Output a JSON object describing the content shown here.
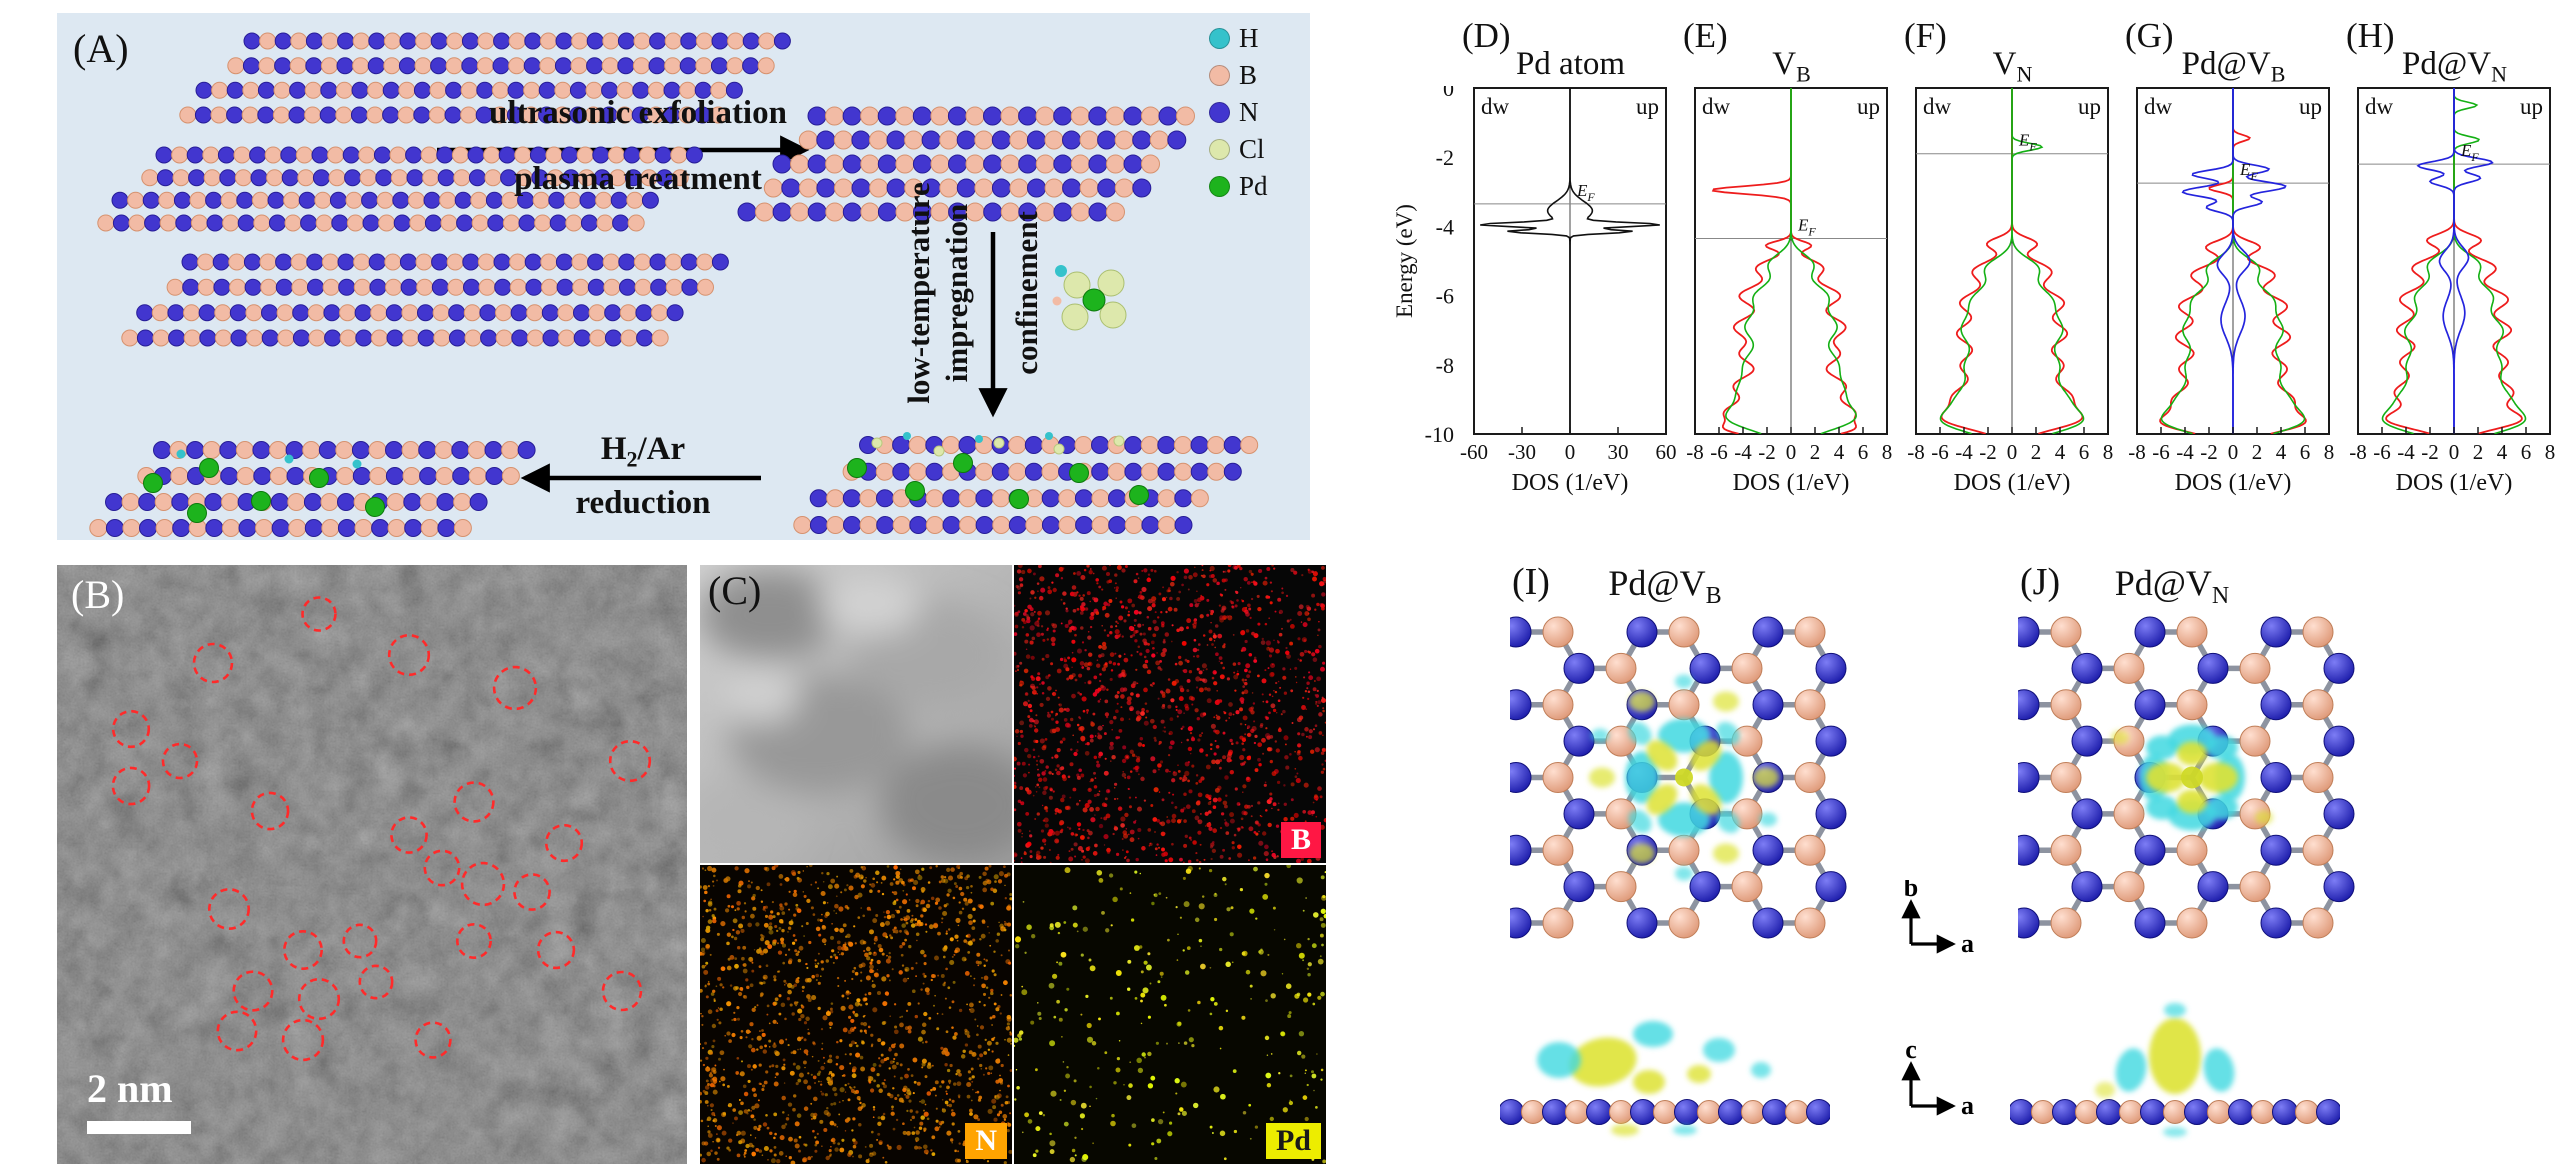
{
  "panelA": {
    "letter": "(A)",
    "arrow_right_line1": "ultrasonic exfoliation",
    "arrow_right_line2": "plasma treatment",
    "vert_label_1": "low-temperature",
    "vert_label_2": "impregnation",
    "vert_label_3": "confinement",
    "h2ar_main": "H",
    "h2ar_sub": "2",
    "h2ar_rest": "/Ar",
    "h2ar_line2": "reduction",
    "background_color": "#dde8f2",
    "legend": [
      {
        "label": "H",
        "color": "#35c2cb"
      },
      {
        "label": "B",
        "color": "#f2bba5"
      },
      {
        "label": "N",
        "color": "#4236cf"
      },
      {
        "label": "Cl",
        "color": "#dde8ac"
      },
      {
        "label": "Pd",
        "color": "#1db31d"
      }
    ]
  },
  "panelB": {
    "letter": "(B)",
    "scale_bar": "2 nm"
  },
  "panelC": {
    "letter": "(C)",
    "maps": [
      {
        "label": "B",
        "bg": "#ff1744",
        "fg": "#ffffff"
      },
      {
        "label": "N",
        "bg": "#ffa300",
        "fg": "#ffffff"
      },
      {
        "label": "Pd",
        "bg": "#eded00",
        "fg": "#1a1a1a"
      }
    ]
  },
  "dos": {
    "energy_axis": {
      "label": "Energy (eV)",
      "ticks": [
        0,
        -2,
        -4,
        -6,
        -8,
        -10
      ],
      "range": [
        0,
        -10
      ]
    },
    "fermi_main": "E",
    "fermi_sub": "F"
  },
  "chart_data": [
    {
      "type": "line",
      "letter": "(D)",
      "title_main": "Pd atom",
      "title_sub": "",
      "xlabel": "DOS (1/eV)",
      "xlim": [
        -60,
        60
      ],
      "xticks": [
        -60,
        -30,
        0,
        30,
        60
      ],
      "ylim": [
        0,
        -10
      ],
      "ylabel": "Energy (eV)",
      "fermi_energy": -3.35,
      "spin_labels": [
        "dw",
        "up"
      ],
      "series": [
        {
          "name": "black",
          "color": "#111111",
          "width": 1.6,
          "peaks_up": [
            [
              -3.55,
              0.28,
              14
            ],
            [
              -3.95,
              0.06,
              52
            ],
            [
              -4.15,
              0.05,
              38
            ]
          ],
          "peaks_dw": [
            [
              -3.55,
              0.28,
              14
            ],
            [
              -3.95,
              0.06,
              52
            ],
            [
              -4.15,
              0.05,
              38
            ]
          ]
        }
      ]
    },
    {
      "type": "line",
      "letter": "(E)",
      "title_main": "V",
      "title_sub": "B",
      "xlabel": "DOS (1/eV)",
      "xlim": [
        -8,
        8
      ],
      "xticks": [
        -8,
        -6,
        -4,
        -2,
        0,
        2,
        4,
        6,
        8
      ],
      "ylim": [
        0,
        -10
      ],
      "fermi_energy": -4.35,
      "spin_labels": [
        "dw",
        "up"
      ],
      "series": [
        {
          "name": "red",
          "color": "#ee1c1c",
          "width": 1.8,
          "peaks_dw": [
            [
              -2.95,
              0.11,
              6.6
            ],
            [
              -4.55,
              0.12,
              2.0
            ],
            [
              -5.2,
              0.25,
              2.8
            ],
            [
              -6.0,
              0.3,
              4.2
            ],
            [
              -6.9,
              0.32,
              4.6
            ],
            [
              -7.7,
              0.3,
              4.0
            ],
            [
              -8.6,
              0.33,
              4.6
            ],
            [
              -9.4,
              0.3,
              5.2
            ],
            [
              -9.9,
              0.2,
              4.0
            ]
          ],
          "peaks_up": [
            [
              -4.55,
              0.12,
              1.6
            ],
            [
              -5.2,
              0.25,
              2.6
            ],
            [
              -6.0,
              0.3,
              4.0
            ],
            [
              -6.9,
              0.32,
              4.4
            ],
            [
              -7.7,
              0.3,
              3.8
            ],
            [
              -8.6,
              0.33,
              4.4
            ],
            [
              -9.4,
              0.3,
              5.0
            ],
            [
              -9.9,
              0.2,
              3.8
            ]
          ]
        },
        {
          "name": "green",
          "color": "#14b014",
          "width": 1.6,
          "peaks_dw": [
            [
              -5.1,
              0.3,
              1.8
            ],
            [
              -6.0,
              0.35,
              2.8
            ],
            [
              -6.9,
              0.4,
              3.6
            ],
            [
              -7.9,
              0.4,
              3.2
            ],
            [
              -8.8,
              0.45,
              4.0
            ],
            [
              -9.6,
              0.35,
              4.4
            ]
          ],
          "peaks_up": [
            [
              -5.1,
              0.3,
              1.8
            ],
            [
              -6.0,
              0.35,
              2.8
            ],
            [
              -6.9,
              0.4,
              3.6
            ],
            [
              -7.9,
              0.4,
              3.2
            ],
            [
              -8.8,
              0.45,
              4.0
            ],
            [
              -9.6,
              0.35,
              4.4
            ]
          ]
        }
      ]
    },
    {
      "type": "line",
      "letter": "(F)",
      "title_main": "V",
      "title_sub": "N",
      "xlabel": "DOS (1/eV)",
      "xlim": [
        -8,
        8
      ],
      "xticks": [
        -8,
        -6,
        -4,
        -2,
        0,
        2,
        4,
        6,
        8
      ],
      "ylim": [
        0,
        -10
      ],
      "fermi_energy": -1.9,
      "spin_labels": [
        "dw",
        "up"
      ],
      "series": [
        {
          "name": "red",
          "color": "#ee1c1c",
          "width": 1.8,
          "peaks_dw": [
            [
              -4.5,
              0.18,
              2.0
            ],
            [
              -5.3,
              0.3,
              3.2
            ],
            [
              -6.2,
              0.33,
              4.2
            ],
            [
              -7.1,
              0.33,
              4.4
            ],
            [
              -8.0,
              0.33,
              4.0
            ],
            [
              -8.9,
              0.36,
              4.6
            ],
            [
              -9.6,
              0.3,
              5.0
            ]
          ],
          "peaks_up": [
            [
              -4.5,
              0.18,
              2.0
            ],
            [
              -5.3,
              0.3,
              3.2
            ],
            [
              -6.2,
              0.33,
              4.2
            ],
            [
              -7.1,
              0.33,
              4.4
            ],
            [
              -8.0,
              0.33,
              4.0
            ],
            [
              -8.9,
              0.36,
              4.6
            ],
            [
              -9.6,
              0.3,
              5.0
            ]
          ]
        },
        {
          "name": "green",
          "color": "#14b014",
          "width": 1.6,
          "peaks_dw": [
            [
              -5.2,
              0.3,
              2.0
            ],
            [
              -6.1,
              0.4,
              3.0
            ],
            [
              -7.0,
              0.42,
              3.8
            ],
            [
              -8.0,
              0.42,
              3.4
            ],
            [
              -9.0,
              0.45,
              4.2
            ],
            [
              -9.7,
              0.33,
              4.4
            ]
          ],
          "peaks_up": [
            [
              -1.7,
              0.1,
              2.5
            ],
            [
              -5.2,
              0.3,
              2.0
            ],
            [
              -6.1,
              0.4,
              3.0
            ],
            [
              -7.0,
              0.42,
              3.8
            ],
            [
              -8.0,
              0.42,
              3.4
            ],
            [
              -9.0,
              0.45,
              4.2
            ],
            [
              -9.7,
              0.33,
              4.4
            ]
          ]
        }
      ]
    },
    {
      "type": "line",
      "letter": "(G)",
      "title_main": "Pd@V",
      "title_sub": "B",
      "xlabel": "DOS (1/eV)",
      "xlim": [
        -8,
        8
      ],
      "xticks": [
        -8,
        -6,
        -4,
        -2,
        0,
        2,
        4,
        6,
        8
      ],
      "ylim": [
        0,
        -10
      ],
      "fermi_energy": -2.75,
      "spin_labels": [
        "dw",
        "up"
      ],
      "series": [
        {
          "name": "red",
          "color": "#ee1c1c",
          "width": 1.8,
          "peaks_dw": [
            [
              -2.9,
              0.1,
              2.0
            ],
            [
              -4.6,
              0.18,
              2.2
            ],
            [
              -5.4,
              0.28,
              3.4
            ],
            [
              -6.3,
              0.32,
              4.4
            ],
            [
              -7.2,
              0.32,
              4.6
            ],
            [
              -8.1,
              0.32,
              4.2
            ],
            [
              -9.0,
              0.36,
              4.8
            ],
            [
              -9.7,
              0.28,
              5.2
            ]
          ],
          "peaks_up": [
            [
              -1.45,
              0.09,
              1.4
            ],
            [
              -4.6,
              0.18,
              2.2
            ],
            [
              -5.4,
              0.28,
              3.4
            ],
            [
              -6.3,
              0.32,
              4.4
            ],
            [
              -7.2,
              0.32,
              4.6
            ],
            [
              -8.1,
              0.32,
              4.2
            ],
            [
              -9.0,
              0.36,
              4.8
            ],
            [
              -9.7,
              0.28,
              5.2
            ]
          ]
        },
        {
          "name": "green",
          "color": "#14b014",
          "width": 1.6,
          "peaks_dw": [
            [
              -5.2,
              0.3,
              2.0
            ],
            [
              -6.1,
              0.38,
              3.0
            ],
            [
              -7.0,
              0.42,
              3.8
            ],
            [
              -8.0,
              0.42,
              3.4
            ],
            [
              -9.0,
              0.45,
              4.2
            ],
            [
              -9.7,
              0.33,
              4.4
            ]
          ],
          "peaks_up": [
            [
              -5.2,
              0.3,
              2.0
            ],
            [
              -6.1,
              0.38,
              3.0
            ],
            [
              -7.0,
              0.42,
              3.8
            ],
            [
              -8.0,
              0.42,
              3.4
            ],
            [
              -9.0,
              0.45,
              4.2
            ],
            [
              -9.7,
              0.33,
              4.4
            ]
          ]
        },
        {
          "name": "blue",
          "color": "#2424dd",
          "width": 1.7,
          "peaks_dw": [
            [
              -2.5,
              0.12,
              3.4
            ],
            [
              -3.0,
              0.14,
              4.2
            ],
            [
              -3.45,
              0.12,
              2.2
            ],
            [
              -5.1,
              0.3,
              1.3
            ],
            [
              -6.7,
              0.5,
              1.0
            ]
          ],
          "peaks_up": [
            [
              -2.35,
              0.12,
              3.0
            ],
            [
              -2.85,
              0.14,
              4.4
            ],
            [
              -3.3,
              0.12,
              2.4
            ],
            [
              -5.0,
              0.3,
              1.4
            ],
            [
              -6.6,
              0.5,
              1.0
            ]
          ]
        }
      ]
    },
    {
      "type": "line",
      "letter": "(H)",
      "title_main": "Pd@V",
      "title_sub": "N",
      "xlabel": "DOS (1/eV)",
      "xlim": [
        -8,
        8
      ],
      "xticks": [
        -8,
        -6,
        -4,
        -2,
        0,
        2,
        4,
        6,
        8
      ],
      "ylim": [
        0,
        -10
      ],
      "fermi_energy": -2.2,
      "spin_labels": [
        "dw",
        "up"
      ],
      "series": [
        {
          "name": "red",
          "color": "#ee1c1c",
          "width": 1.8,
          "peaks_dw": [
            [
              -4.4,
              0.18,
              2.2
            ],
            [
              -5.2,
              0.28,
              3.4
            ],
            [
              -6.1,
              0.32,
              4.4
            ],
            [
              -7.0,
              0.32,
              4.6
            ],
            [
              -7.9,
              0.32,
              4.2
            ],
            [
              -8.8,
              0.36,
              4.8
            ],
            [
              -9.6,
              0.28,
              5.2
            ]
          ],
          "peaks_up": [
            [
              -4.4,
              0.18,
              2.2
            ],
            [
              -5.2,
              0.28,
              3.4
            ],
            [
              -6.1,
              0.32,
              4.4
            ],
            [
              -7.0,
              0.32,
              4.6
            ],
            [
              -7.9,
              0.32,
              4.2
            ],
            [
              -8.8,
              0.36,
              4.8
            ],
            [
              -9.6,
              0.28,
              5.2
            ]
          ]
        },
        {
          "name": "green",
          "color": "#14b014",
          "width": 1.6,
          "peaks_dw": [
            [
              -5.1,
              0.3,
              2.0
            ],
            [
              -6.0,
              0.38,
              3.0
            ],
            [
              -7.0,
              0.42,
              3.8
            ],
            [
              -8.0,
              0.42,
              3.4
            ],
            [
              -9.0,
              0.45,
              4.2
            ],
            [
              -9.7,
              0.33,
              4.4
            ]
          ],
          "peaks_up": [
            [
              -0.5,
              0.09,
              1.9
            ],
            [
              -1.5,
              0.1,
              2.1
            ],
            [
              -5.1,
              0.3,
              2.0
            ],
            [
              -6.0,
              0.38,
              3.0
            ],
            [
              -7.0,
              0.42,
              3.8
            ],
            [
              -8.0,
              0.42,
              3.4
            ],
            [
              -9.0,
              0.45,
              4.2
            ],
            [
              -9.7,
              0.33,
              4.4
            ]
          ]
        },
        {
          "name": "blue",
          "color": "#2424dd",
          "width": 1.7,
          "peaks_dw": [
            [
              -2.25,
              0.12,
              3.0
            ],
            [
              -2.7,
              0.12,
              2.0
            ],
            [
              -5.0,
              0.3,
              1.2
            ],
            [
              -6.6,
              0.5,
              0.9
            ]
          ],
          "peaks_up": [
            [
              -2.15,
              0.12,
              3.2
            ],
            [
              -2.6,
              0.12,
              2.2
            ],
            [
              -4.9,
              0.3,
              1.2
            ],
            [
              -6.5,
              0.5,
              0.9
            ]
          ]
        }
      ]
    }
  ],
  "panelIJ": {
    "items": [
      {
        "letter": "(I)",
        "title_main": "Pd@V",
        "title_sub": "B"
      },
      {
        "letter": "(J)",
        "title_main": "Pd@V",
        "title_sub": "N"
      }
    ],
    "axis_top": {
      "v": "b",
      "h": "a"
    },
    "axis_side": {
      "v": "c",
      "h": "a"
    }
  }
}
